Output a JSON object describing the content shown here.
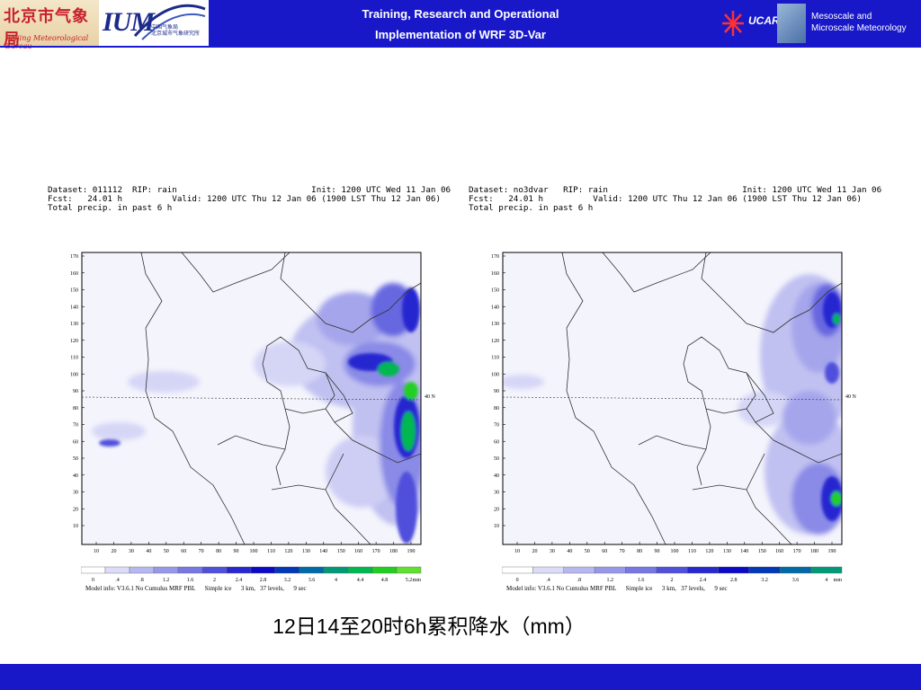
{
  "header": {
    "bmb_logo": {
      "cn_text": "北京市气象局",
      "en_text": "Beijing Meteorological Bureau"
    },
    "ium_logo": {
      "text": "IUM",
      "sub_text": "中国气象局\n北京城市气象研究所"
    },
    "title_line1": "Training, Research and Operational",
    "title_line2": "Implementation of WRF 3D-Var",
    "ucar_text": "UCAR",
    "mmm_line1": "Mesoscale and",
    "mmm_line2": "Microscale Meteorology"
  },
  "panels": [
    {
      "id": "left",
      "hdr_line1": "Dataset: 011112  RIP: rain                           Init: 1200 UTC Wed 11 Jan 06",
      "hdr_line2": "Fcst:   24.01 h          Valid: 1200 UTC Thu 12 Jan 06 (1900 LST Thu 12 Jan 06)",
      "hdr_line3": "Total precip. in past 6 h",
      "lat_label": "40 N",
      "y_ticks": [
        "170",
        "160",
        "150",
        "140",
        "130",
        "120",
        "110",
        "100",
        "90",
        "80",
        "70",
        "60",
        "50",
        "40",
        "30",
        "20",
        "10"
      ],
      "x_ticks": [
        "10",
        "20",
        "30",
        "40",
        "50",
        "60",
        "70",
        "80",
        "90",
        "100",
        "110",
        "120",
        "130",
        "140",
        "150",
        "160",
        "170",
        "180",
        "190"
      ],
      "cbar_labels": [
        "0",
        ".4",
        ".8",
        "1.2",
        "1.6",
        "2",
        "2.4",
        "2.8",
        "3.2",
        "3.6",
        "4",
        "4.4",
        "4.8",
        "5.2",
        "mm"
      ],
      "model_info": "Model info: V3.6.1 No Cumulus MRF PBL      Simple ice      3 km,   37 levels,      9 sec"
    },
    {
      "id": "right",
      "hdr_line1": "Dataset: no3dvar   RIP: rain                           Init: 1200 UTC Wed 11 Jan 06",
      "hdr_line2": "Fcst:   24.01 h          Valid: 1200 UTC Thu 12 Jan 06 (1900 LST Thu 12 Jan 06)",
      "hdr_line3": "Total precip. in past 6 h",
      "lat_label": "40 N",
      "y_ticks": [
        "170",
        "160",
        "150",
        "140",
        "130",
        "120",
        "110",
        "100",
        "90",
        "80",
        "70",
        "60",
        "50",
        "40",
        "30",
        "20",
        "10"
      ],
      "x_ticks": [
        "10",
        "20",
        "30",
        "40",
        "50",
        "60",
        "70",
        "80",
        "90",
        "100",
        "110",
        "120",
        "130",
        "140",
        "150",
        "160",
        "170",
        "180",
        "190"
      ],
      "cbar_labels": [
        "0",
        ".4",
        ".8",
        "1.2",
        "1.6",
        "2",
        "2.4",
        "2.8",
        "3.2",
        "3.6",
        "4",
        "mm"
      ],
      "model_info": "Model info: V3.6.1 No Cumulus MRF PBL      Simple ice      3 km,   37 levels,      9 sec"
    }
  ],
  "colorbar_colors": [
    "#ffffff",
    "#dcdcf8",
    "#b8b8f0",
    "#9898ea",
    "#7878e4",
    "#5050dc",
    "#2828d0",
    "#0a0ac8",
    "#0038b8",
    "#006aa8",
    "#009a78",
    "#00b850",
    "#20d020",
    "#60e030"
  ],
  "caption": "12日14至20时6h累积降水（mm）"
}
